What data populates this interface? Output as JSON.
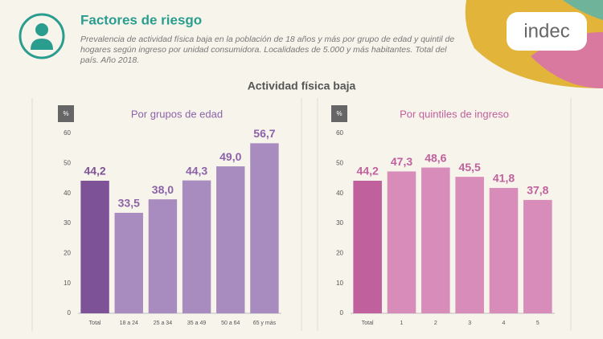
{
  "header": {
    "title": "Factores de riesgo",
    "subtitle": "Prevalencia de actividad física baja en la población de 18 años y más por grupo de edad y quintil de hogares según ingreso por unidad consumidora. Localidades de 5.000 y más habitantes. Total del país. Año 2018.",
    "logo": "indec"
  },
  "section_title": "Actividad física baja",
  "chart_data": [
    {
      "type": "bar",
      "title": "Por grupos de edad",
      "y_label": "%",
      "categories": [
        "Total",
        "18 a 24",
        "25 a 34",
        "35 a 49",
        "50 a 64",
        "65 y más"
      ],
      "values": [
        44.2,
        33.5,
        38.0,
        44.3,
        49.0,
        56.7
      ],
      "value_labels": [
        "44,2",
        "33,5",
        "38,0",
        "44,3",
        "49,0",
        "56,7"
      ],
      "colors": [
        "#7d5296",
        "#a98cbf",
        "#a98cbf",
        "#a98cbf",
        "#a98cbf",
        "#a98cbf"
      ],
      "title_color": "#8b62a8",
      "ylim": [
        0,
        60
      ],
      "yticks": [
        0,
        10,
        20,
        30,
        40,
        50,
        60
      ]
    },
    {
      "type": "bar",
      "title": "Por quintiles de ingreso",
      "y_label": "%",
      "categories": [
        "Total",
        "1",
        "2",
        "3",
        "4",
        "5"
      ],
      "values": [
        44.2,
        47.3,
        48.6,
        45.5,
        41.8,
        37.8
      ],
      "value_labels": [
        "44,2",
        "47,3",
        "48,6",
        "45,5",
        "41,8",
        "37,8"
      ],
      "colors": [
        "#c0609c",
        "#d88cba",
        "#d88cba",
        "#d88cba",
        "#d88cba",
        "#d88cba"
      ],
      "title_color": "#c0609c",
      "ylim": [
        0,
        60
      ],
      "yticks": [
        0,
        10,
        20,
        30,
        40,
        50,
        60
      ]
    }
  ]
}
